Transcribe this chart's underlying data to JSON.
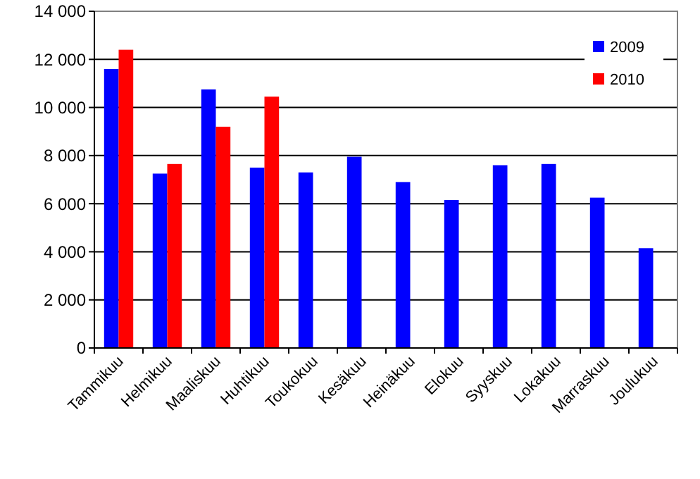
{
  "chart_data": {
    "type": "bar",
    "categories": [
      "Tammikuu",
      "Helmikuu",
      "Maaliskuu",
      "Huhtikuu",
      "Toukokuu",
      "Kesäkuu",
      "Heinäkuu",
      "Elokuu",
      "Syyskuu",
      "Lokakuu",
      "Marraskuu",
      "Joulukuu"
    ],
    "series": [
      {
        "name": "2009",
        "color": "#0000ff",
        "values": [
          11600,
          7250,
          10750,
          7500,
          7300,
          7950,
          6900,
          6150,
          7600,
          7650,
          6250,
          4150
        ]
      },
      {
        "name": "2010",
        "color": "#ff0000",
        "values": [
          12400,
          7650,
          9200,
          10450,
          null,
          null,
          null,
          null,
          null,
          null,
          null,
          null
        ]
      }
    ],
    "ylim": [
      0,
      14000
    ],
    "yticks": [
      {
        "value": 0,
        "label": "0"
      },
      {
        "value": 2000,
        "label": "2 000"
      },
      {
        "value": 4000,
        "label": "4 000"
      },
      {
        "value": 6000,
        "label": "6 000"
      },
      {
        "value": 8000,
        "label": "8 000"
      },
      {
        "value": 10000,
        "label": "10 000"
      },
      {
        "value": 12000,
        "label": "12 000"
      },
      {
        "value": 14000,
        "label": "14 000"
      }
    ],
    "grid": "y",
    "legend": "top right"
  }
}
